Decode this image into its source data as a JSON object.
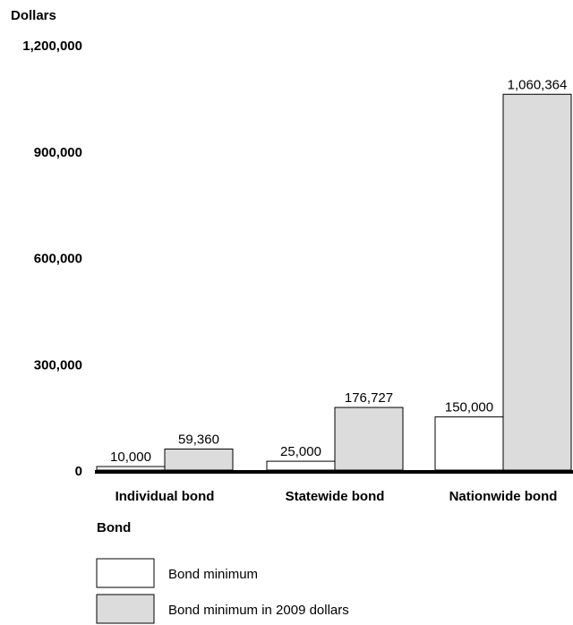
{
  "chart_data": {
    "type": "bar",
    "ylabel": "Dollars",
    "xlabel": "Bond",
    "categories": [
      "Individual bond",
      "Statewide bond",
      "Nationwide bond"
    ],
    "ylim": [
      0,
      1200000
    ],
    "yticks": [
      0,
      300000,
      600000,
      900000,
      1200000
    ],
    "ytick_labels": [
      "0",
      "300,000",
      "600,000",
      "900,000",
      "1,200,000"
    ],
    "grid": false,
    "legend_position": "bottom-left",
    "series": [
      {
        "name": "Bond minimum",
        "color": "#ffffff",
        "values": [
          10000,
          25000,
          150000
        ],
        "labels": [
          "10,000",
          "25,000",
          "150,000"
        ]
      },
      {
        "name": "Bond minimum in 2009 dollars",
        "color": "#dcdcdc",
        "values": [
          59360,
          176727,
          1060364
        ],
        "labels": [
          "59,360",
          "176,727",
          "1,060,364"
        ]
      }
    ]
  }
}
